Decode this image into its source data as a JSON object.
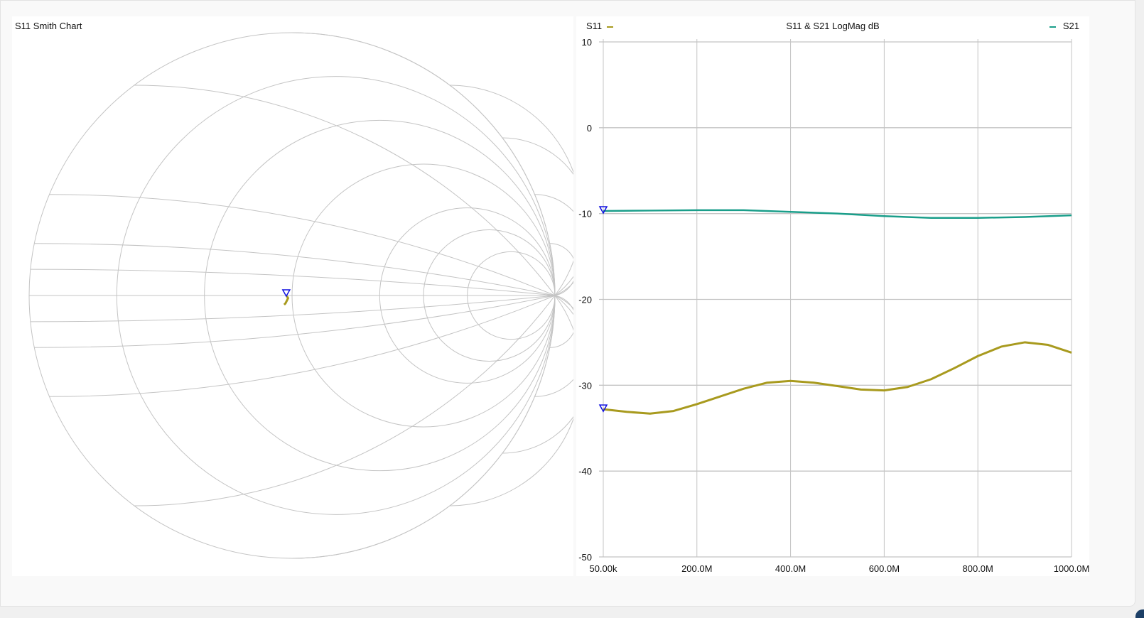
{
  "smith": {
    "title": "S11 Smith Chart",
    "resistance_circles": [
      0,
      0.2,
      0.5,
      1,
      2,
      3,
      5
    ],
    "reactance_arcs": [
      0.05,
      0.1,
      0.2,
      0.5,
      1,
      2,
      3,
      5,
      10
    ],
    "trace_color": "#a89a1e",
    "marker_color": "#1010e0",
    "s11_points": [
      [
        -0.03,
        -0.035
      ],
      [
        -0.025,
        -0.03
      ],
      [
        -0.02,
        -0.02
      ],
      [
        -0.015,
        -0.01
      ],
      [
        -0.02,
        -0.002
      ]
    ],
    "marker": [
      -0.022,
      0.0
    ]
  },
  "chart_data": {
    "type": "line",
    "title": "S11 & S21 LogMag dB",
    "xlim": [
      0.05,
      1000
    ],
    "ylim": [
      -50,
      10
    ],
    "x_ticks": [
      0.05,
      200,
      400,
      600,
      800,
      1000
    ],
    "x_tick_labels": [
      "50.00k",
      "200.0M",
      "400.0M",
      "600.0M",
      "800.0M",
      "1000.0M"
    ],
    "y_ticks": [
      10,
      0,
      -10,
      -20,
      -30,
      -40,
      -50
    ],
    "y_tick_labels": [
      "10",
      "0",
      "-10",
      "-20",
      "-30",
      "-40",
      "-50"
    ],
    "grid": true,
    "series": [
      {
        "name": "S11",
        "color": "#a89a1e",
        "x": [
          0.05,
          50,
          100,
          150,
          200,
          250,
          300,
          350,
          400,
          450,
          500,
          550,
          600,
          650,
          700,
          750,
          800,
          850,
          900,
          950,
          1000
        ],
        "y": [
          -32.8,
          -33.1,
          -33.3,
          -33.0,
          -32.2,
          -31.3,
          -30.4,
          -29.7,
          -29.5,
          -29.7,
          -30.1,
          -30.5,
          -30.6,
          -30.2,
          -29.3,
          -28.0,
          -26.6,
          -25.5,
          -25.0,
          -25.3,
          -26.2
        ]
      },
      {
        "name": "S21",
        "color": "#1a9e8a",
        "x": [
          0.05,
          100,
          200,
          300,
          400,
          500,
          600,
          700,
          800,
          900,
          1000
        ],
        "y": [
          -9.7,
          -9.65,
          -9.6,
          -9.6,
          -9.8,
          -10.0,
          -10.3,
          -10.5,
          -10.5,
          -10.4,
          -10.2
        ]
      }
    ],
    "markers": [
      {
        "series": "S21",
        "x": 0.05,
        "y": -9.7
      },
      {
        "series": "S11",
        "x": 0.05,
        "y": -32.8
      }
    ],
    "legend": {
      "S11": "top-left",
      "S21": "top-right"
    }
  }
}
